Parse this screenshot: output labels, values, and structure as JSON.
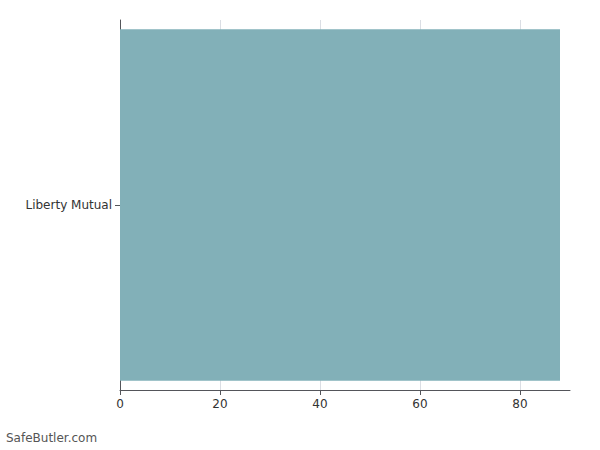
{
  "chart_data": {
    "type": "bar",
    "orientation": "horizontal",
    "categories": [
      "Liberty Mutual"
    ],
    "values": [
      88
    ],
    "color": "#82b0b8",
    "xlim": [
      0,
      90
    ],
    "xticks": [
      0,
      20,
      40,
      60,
      80
    ],
    "grid": true,
    "annotation": "SafeButler.com"
  }
}
